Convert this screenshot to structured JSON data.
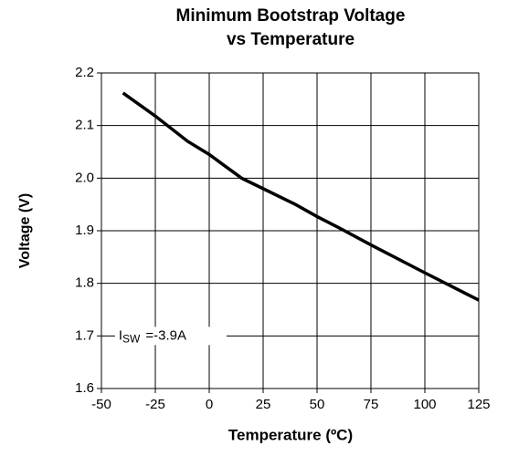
{
  "chart_data": {
    "type": "line",
    "title": [
      "Minimum Bootstrap Voltage",
      "vs Temperature"
    ],
    "xlabel": "Temperature (ºC)",
    "ylabel": "Voltage (V)",
    "x": [
      -40,
      -25,
      -10,
      0,
      5,
      15,
      25,
      40,
      50,
      60,
      75,
      100,
      125
    ],
    "series": [
      {
        "name": "Minimum Bootstrap Voltage",
        "color": "#000000",
        "values": [
          2.162,
          2.118,
          2.07,
          2.045,
          2.03,
          2.0,
          1.98,
          1.95,
          1.927,
          1.906,
          1.873,
          1.82,
          1.768
        ]
      }
    ],
    "xlim": [
      -50,
      125
    ],
    "xticks": [
      -50,
      -25,
      0,
      25,
      50,
      75,
      100,
      125
    ],
    "ylim": [
      1.6,
      2.2
    ],
    "yticks": [
      1.6,
      1.7,
      1.8,
      1.9,
      {
        "value": 2,
        "label": "2.0"
      },
      2.1,
      2.2
    ],
    "grid": true,
    "annotation": {
      "text": "I",
      "subscript": "SW",
      "suffix": "=-3.9A",
      "x": -42,
      "y": 1.7
    }
  }
}
